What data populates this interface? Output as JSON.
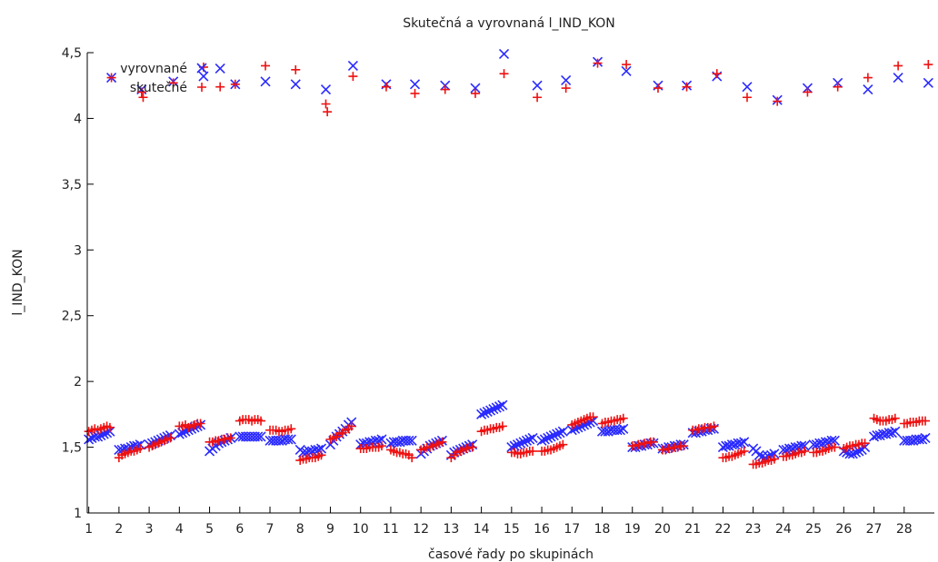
{
  "chart_data": {
    "type": "scatter",
    "title": "Skutečná a vyrovnaná l_IND_KON",
    "xlabel": "časové řady po skupinách",
    "ylabel": "l_IND_KON",
    "xlim": [
      0.95,
      29.0
    ],
    "ylim": [
      1,
      4.5
    ],
    "xticks": [
      1,
      2,
      3,
      4,
      5,
      6,
      7,
      8,
      9,
      10,
      11,
      12,
      13,
      14,
      15,
      16,
      17,
      18,
      19,
      20,
      21,
      22,
      23,
      24,
      25,
      26,
      27,
      28
    ],
    "xtick_labels": [
      "1",
      "2",
      "3",
      "4",
      "5",
      "6",
      "7",
      "8",
      "9",
      "10",
      "11",
      "12",
      "13",
      "14",
      "15",
      "16",
      "17",
      "18",
      "19",
      "20",
      "21",
      "22",
      "23",
      "24",
      "25",
      "26",
      "27",
      "28"
    ],
    "yticks": [
      1,
      1.5,
      2,
      2.5,
      3,
      3.5,
      4,
      4.5
    ],
    "ytick_labels": [
      "1",
      "1,5",
      "2",
      "2,5",
      "3",
      "3,5",
      "4",
      "4,5"
    ],
    "grid": false,
    "legend_position": "top-left",
    "series": [
      {
        "name": "vyrovnané",
        "marker": "x",
        "color": "#2a2aff",
        "x": [
          1.0,
          1.1,
          1.2,
          1.3,
          1.4,
          1.5,
          1.6,
          1.7,
          2.0,
          2.1,
          2.2,
          2.3,
          2.4,
          2.5,
          2.6,
          2.7,
          3.0,
          3.1,
          3.2,
          3.3,
          3.4,
          3.5,
          3.6,
          3.7,
          4.0,
          4.1,
          4.2,
          4.3,
          4.4,
          4.5,
          4.6,
          4.7,
          5.0,
          5.1,
          5.2,
          5.3,
          5.4,
          5.5,
          5.6,
          5.7,
          6.0,
          6.1,
          6.2,
          6.3,
          6.4,
          6.5,
          6.6,
          6.7,
          7.0,
          7.1,
          7.2,
          7.3,
          7.4,
          7.5,
          7.6,
          7.7,
          8.0,
          8.1,
          8.2,
          8.3,
          8.4,
          8.5,
          8.6,
          8.7,
          9.0,
          9.1,
          9.2,
          9.3,
          9.4,
          9.5,
          9.6,
          9.7,
          10.0,
          10.1,
          10.2,
          10.3,
          10.4,
          10.5,
          10.6,
          10.7,
          11.0,
          11.1,
          11.2,
          11.3,
          11.4,
          11.5,
          11.6,
          11.7,
          12.0,
          12.1,
          12.2,
          12.3,
          12.4,
          12.5,
          12.6,
          12.7,
          13.0,
          13.1,
          13.2,
          13.3,
          13.4,
          13.5,
          13.6,
          13.7,
          14.0,
          14.1,
          14.2,
          14.3,
          14.4,
          14.5,
          14.6,
          14.7,
          15.0,
          15.1,
          15.2,
          15.3,
          15.4,
          15.5,
          15.6,
          15.7,
          16.0,
          16.1,
          16.2,
          16.3,
          16.4,
          16.5,
          16.6,
          16.7,
          17.0,
          17.1,
          17.2,
          17.3,
          17.4,
          17.5,
          17.6,
          17.7,
          18.0,
          18.1,
          18.2,
          18.3,
          18.4,
          18.5,
          18.6,
          18.7,
          19.0,
          19.1,
          19.2,
          19.3,
          19.4,
          19.5,
          19.6,
          19.7,
          20.0,
          20.1,
          20.2,
          20.3,
          20.4,
          20.5,
          20.6,
          20.7,
          21.0,
          21.1,
          21.2,
          21.3,
          21.4,
          21.5,
          21.6,
          21.7,
          22.0,
          22.1,
          22.2,
          22.3,
          22.4,
          22.5,
          22.6,
          22.7,
          23.0,
          23.1,
          23.2,
          23.3,
          23.4,
          23.5,
          23.6,
          23.7,
          24.0,
          24.1,
          24.2,
          24.3,
          24.4,
          24.5,
          24.6,
          24.7,
          25.0,
          25.1,
          25.2,
          25.3,
          25.4,
          25.5,
          25.6,
          25.7,
          26.0,
          26.1,
          26.2,
          26.3,
          26.4,
          26.5,
          26.6,
          26.7,
          27.0,
          27.1,
          27.2,
          27.3,
          27.4,
          27.5,
          27.6,
          27.7,
          28.0,
          28.1,
          28.2,
          28.3,
          28.4,
          28.5,
          28.6,
          28.7,
          1.75,
          2.75,
          3.8,
          4.8,
          5.35,
          5.85,
          6.85,
          7.85,
          8.85,
          9.75,
          10.85,
          11.8,
          12.8,
          13.8,
          14.75,
          15.85,
          16.8,
          17.85,
          18.8,
          19.85,
          20.8,
          21.8,
          22.8,
          23.8,
          24.8,
          25.8,
          26.8,
          27.8,
          28.8
        ],
        "y": [
          1.56,
          1.57,
          1.58,
          1.58,
          1.59,
          1.6,
          1.61,
          1.62,
          1.48,
          1.48,
          1.49,
          1.49,
          1.5,
          1.51,
          1.51,
          1.52,
          1.52,
          1.53,
          1.54,
          1.55,
          1.56,
          1.57,
          1.58,
          1.59,
          1.6,
          1.61,
          1.62,
          1.63,
          1.64,
          1.65,
          1.66,
          1.67,
          1.47,
          1.49,
          1.51,
          1.53,
          1.54,
          1.55,
          1.56,
          1.57,
          1.58,
          1.58,
          1.58,
          1.58,
          1.58,
          1.58,
          1.58,
          1.58,
          1.55,
          1.55,
          1.55,
          1.55,
          1.55,
          1.56,
          1.56,
          1.56,
          1.48,
          1.46,
          1.46,
          1.47,
          1.47,
          1.48,
          1.48,
          1.49,
          1.52,
          1.55,
          1.58,
          1.6,
          1.62,
          1.64,
          1.67,
          1.69,
          1.52,
          1.53,
          1.53,
          1.54,
          1.54,
          1.55,
          1.55,
          1.56,
          1.53,
          1.54,
          1.54,
          1.54,
          1.55,
          1.55,
          1.55,
          1.55,
          1.45,
          1.47,
          1.49,
          1.51,
          1.52,
          1.53,
          1.54,
          1.55,
          1.44,
          1.46,
          1.47,
          1.48,
          1.49,
          1.5,
          1.51,
          1.52,
          1.75,
          1.76,
          1.77,
          1.78,
          1.79,
          1.8,
          1.81,
          1.82,
          1.5,
          1.51,
          1.52,
          1.53,
          1.54,
          1.55,
          1.56,
          1.57,
          1.55,
          1.56,
          1.57,
          1.58,
          1.59,
          1.6,
          1.61,
          1.62,
          1.63,
          1.64,
          1.65,
          1.66,
          1.67,
          1.68,
          1.69,
          1.7,
          1.62,
          1.62,
          1.62,
          1.63,
          1.63,
          1.63,
          1.63,
          1.64,
          1.5,
          1.5,
          1.51,
          1.51,
          1.52,
          1.52,
          1.53,
          1.53,
          1.49,
          1.49,
          1.5,
          1.5,
          1.51,
          1.51,
          1.52,
          1.52,
          1.61,
          1.61,
          1.62,
          1.62,
          1.63,
          1.63,
          1.64,
          1.64,
          1.5,
          1.51,
          1.51,
          1.52,
          1.52,
          1.53,
          1.53,
          1.54,
          1.49,
          1.47,
          1.44,
          1.43,
          1.42,
          1.43,
          1.44,
          1.45,
          1.48,
          1.48,
          1.49,
          1.49,
          1.5,
          1.5,
          1.51,
          1.51,
          1.52,
          1.52,
          1.53,
          1.53,
          1.54,
          1.54,
          1.55,
          1.55,
          1.47,
          1.46,
          1.45,
          1.45,
          1.46,
          1.47,
          1.48,
          1.5,
          1.58,
          1.59,
          1.59,
          1.6,
          1.6,
          1.61,
          1.61,
          1.62,
          1.55,
          1.55,
          1.55,
          1.55,
          1.56,
          1.56,
          1.56,
          1.57,
          4.31,
          4.22,
          4.28,
          4.32,
          4.38,
          4.26,
          4.28,
          4.26,
          4.22,
          4.4,
          4.26,
          4.26,
          4.25,
          4.23,
          4.49,
          4.25,
          4.29,
          4.43,
          4.36,
          4.25,
          4.25,
          4.32,
          4.24,
          4.14,
          4.23,
          4.27,
          4.22,
          4.31,
          4.27
        ]
      },
      {
        "name": "skutečné",
        "marker": "+",
        "color": "#ee1111",
        "x": [
          1.0,
          1.1,
          1.2,
          1.3,
          1.4,
          1.5,
          1.6,
          1.7,
          2.0,
          2.1,
          2.2,
          2.3,
          2.4,
          2.5,
          2.6,
          2.7,
          3.0,
          3.1,
          3.2,
          3.3,
          3.4,
          3.5,
          3.6,
          3.7,
          4.0,
          4.1,
          4.2,
          4.3,
          4.4,
          4.5,
          4.6,
          4.7,
          5.0,
          5.1,
          5.2,
          5.3,
          5.4,
          5.5,
          5.6,
          5.7,
          6.0,
          6.1,
          6.2,
          6.3,
          6.4,
          6.5,
          6.6,
          6.7,
          7.0,
          7.1,
          7.2,
          7.3,
          7.4,
          7.5,
          7.6,
          7.7,
          8.0,
          8.1,
          8.2,
          8.3,
          8.4,
          8.5,
          8.6,
          8.7,
          9.0,
          9.1,
          9.2,
          9.3,
          9.4,
          9.5,
          9.6,
          9.7,
          10.0,
          10.1,
          10.2,
          10.3,
          10.4,
          10.5,
          10.6,
          10.7,
          11.0,
          11.1,
          11.2,
          11.3,
          11.4,
          11.5,
          11.6,
          11.7,
          12.0,
          12.1,
          12.2,
          12.3,
          12.4,
          12.5,
          12.6,
          12.7,
          13.0,
          13.1,
          13.2,
          13.3,
          13.4,
          13.5,
          13.6,
          13.7,
          14.0,
          14.1,
          14.2,
          14.3,
          14.4,
          14.5,
          14.6,
          14.7,
          15.0,
          15.1,
          15.2,
          15.3,
          15.4,
          15.5,
          15.6,
          15.7,
          16.0,
          16.1,
          16.2,
          16.3,
          16.4,
          16.5,
          16.6,
          16.7,
          17.0,
          17.1,
          17.2,
          17.3,
          17.4,
          17.5,
          17.6,
          17.7,
          18.0,
          18.1,
          18.2,
          18.3,
          18.4,
          18.5,
          18.6,
          18.7,
          19.0,
          19.1,
          19.2,
          19.3,
          19.4,
          19.5,
          19.6,
          19.7,
          20.0,
          20.1,
          20.2,
          20.3,
          20.4,
          20.5,
          20.6,
          20.7,
          21.0,
          21.1,
          21.2,
          21.3,
          21.4,
          21.5,
          21.6,
          21.7,
          22.0,
          22.1,
          22.2,
          22.3,
          22.4,
          22.5,
          22.6,
          22.7,
          23.0,
          23.1,
          23.2,
          23.3,
          23.4,
          23.5,
          23.6,
          23.7,
          24.0,
          24.1,
          24.2,
          24.3,
          24.4,
          24.5,
          24.6,
          24.7,
          25.0,
          25.1,
          25.2,
          25.3,
          25.4,
          25.5,
          25.6,
          25.7,
          26.0,
          26.1,
          26.2,
          26.3,
          26.4,
          26.5,
          26.6,
          26.7,
          27.0,
          27.1,
          27.2,
          27.3,
          27.4,
          27.5,
          27.6,
          27.7,
          28.0,
          28.1,
          28.2,
          28.3,
          28.4,
          28.5,
          28.6,
          28.7,
          1.75,
          2.75,
          2.8,
          3.8,
          4.8,
          5.35,
          5.85,
          6.85,
          7.85,
          8.85,
          8.9,
          9.75,
          10.85,
          11.8,
          12.8,
          13.8,
          14.75,
          15.85,
          16.8,
          17.85,
          18.8,
          19.85,
          20.8,
          21.8,
          22.8,
          23.8,
          24.8,
          25.8,
          26.8,
          27.8,
          28.8
        ],
        "y": [
          1.62,
          1.63,
          1.64,
          1.63,
          1.64,
          1.65,
          1.66,
          1.65,
          1.42,
          1.44,
          1.45,
          1.46,
          1.47,
          1.47,
          1.48,
          1.49,
          1.5,
          1.51,
          1.52,
          1.53,
          1.54,
          1.55,
          1.56,
          1.57,
          1.66,
          1.66,
          1.67,
          1.65,
          1.66,
          1.67,
          1.68,
          1.68,
          1.54,
          1.54,
          1.55,
          1.55,
          1.56,
          1.56,
          1.57,
          1.57,
          1.7,
          1.71,
          1.71,
          1.71,
          1.7,
          1.71,
          1.71,
          1.7,
          1.63,
          1.63,
          1.63,
          1.62,
          1.62,
          1.63,
          1.63,
          1.64,
          1.4,
          1.41,
          1.41,
          1.42,
          1.42,
          1.42,
          1.43,
          1.44,
          1.56,
          1.57,
          1.58,
          1.6,
          1.61,
          1.63,
          1.64,
          1.66,
          1.49,
          1.49,
          1.49,
          1.5,
          1.5,
          1.5,
          1.5,
          1.51,
          1.48,
          1.47,
          1.46,
          1.46,
          1.45,
          1.45,
          1.44,
          1.42,
          1.48,
          1.49,
          1.5,
          1.5,
          1.51,
          1.52,
          1.53,
          1.54,
          1.42,
          1.44,
          1.46,
          1.47,
          1.48,
          1.49,
          1.5,
          1.5,
          1.62,
          1.63,
          1.63,
          1.64,
          1.64,
          1.65,
          1.65,
          1.66,
          1.46,
          1.46,
          1.45,
          1.45,
          1.46,
          1.46,
          1.47,
          1.47,
          1.47,
          1.47,
          1.48,
          1.48,
          1.49,
          1.5,
          1.51,
          1.52,
          1.67,
          1.68,
          1.69,
          1.7,
          1.71,
          1.72,
          1.73,
          1.73,
          1.68,
          1.69,
          1.69,
          1.7,
          1.7,
          1.71,
          1.71,
          1.72,
          1.51,
          1.51,
          1.52,
          1.52,
          1.53,
          1.53,
          1.54,
          1.54,
          1.48,
          1.48,
          1.49,
          1.49,
          1.5,
          1.5,
          1.51,
          1.51,
          1.63,
          1.63,
          1.64,
          1.64,
          1.65,
          1.65,
          1.65,
          1.66,
          1.42,
          1.42,
          1.43,
          1.43,
          1.44,
          1.45,
          1.46,
          1.47,
          1.37,
          1.37,
          1.38,
          1.38,
          1.39,
          1.4,
          1.4,
          1.41,
          1.43,
          1.43,
          1.44,
          1.44,
          1.45,
          1.46,
          1.46,
          1.47,
          1.46,
          1.46,
          1.47,
          1.47,
          1.48,
          1.49,
          1.5,
          1.5,
          1.49,
          1.5,
          1.51,
          1.51,
          1.52,
          1.52,
          1.53,
          1.53,
          1.72,
          1.71,
          1.7,
          1.7,
          1.7,
          1.71,
          1.71,
          1.72,
          1.68,
          1.68,
          1.69,
          1.69,
          1.69,
          1.7,
          1.7,
          1.7,
          4.31,
          4.2,
          4.16,
          4.27,
          4.39,
          4.24,
          4.26,
          4.4,
          4.37,
          4.11,
          4.05,
          4.32,
          4.24,
          4.19,
          4.22,
          4.19,
          4.34,
          4.16,
          4.23,
          4.42,
          4.41,
          4.23,
          4.24,
          4.34,
          4.16,
          4.13,
          4.2,
          4.24,
          4.31,
          4.4,
          4.41
        ]
      }
    ]
  }
}
